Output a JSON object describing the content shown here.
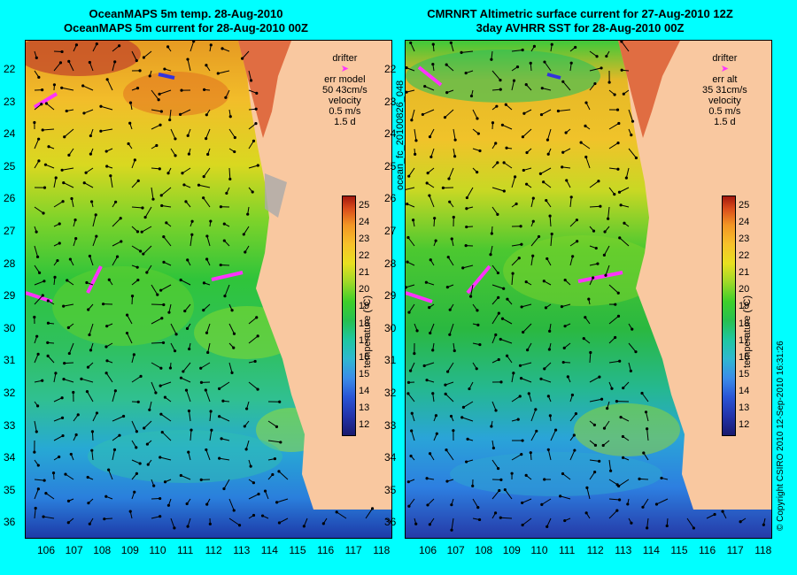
{
  "left": {
    "title_line1": "OceanMAPS 5m temp. 28-Aug-2010",
    "title_line2": "OceanMAPS 5m current for 28-Aug-2010 00Z",
    "legend": {
      "drifter": "drifter",
      "err_label": "err model",
      "err_values": "50 43cm/s",
      "velocity": "velocity",
      "scale": "0.5 m/s",
      "days": "1.5 d"
    }
  },
  "right": {
    "title_line1": "CMRNRT Altimetric surface current for 27-Aug-2010 12Z",
    "title_line2": "3day AVHRR SST for 28-Aug-2010 00Z",
    "legend": {
      "drifter": "drifter",
      "err_label": "err alt",
      "err_values": "35 31cm/s",
      "velocity": "velocity",
      "scale": "0.5 m/s",
      "days": "1.5 d"
    }
  },
  "colorbar": {
    "label": "temperature (°C)",
    "ticks": [
      "25",
      "24",
      "23",
      "22",
      "21",
      "20",
      "19",
      "18",
      "17",
      "16",
      "15",
      "14",
      "13",
      "12"
    ]
  },
  "lat_labels": [
    "22",
    "23",
    "24",
    "25",
    "26",
    "27",
    "28",
    "29",
    "30",
    "31",
    "32",
    "33",
    "34",
    "35",
    "36"
  ],
  "lon_labels": [
    "106",
    "107",
    "108",
    "109",
    "110",
    "111",
    "112",
    "113",
    "114",
    "115",
    "116",
    "117",
    "118"
  ],
  "side_text": "ocean_fc_20100826_048",
  "copyright": "© Copyright CSIRO 2010   12-Sep-2010 16:31:26",
  "colors": {
    "background": "#00ffff",
    "land": "#f9c8a0",
    "drifter": "#ff33ff"
  }
}
